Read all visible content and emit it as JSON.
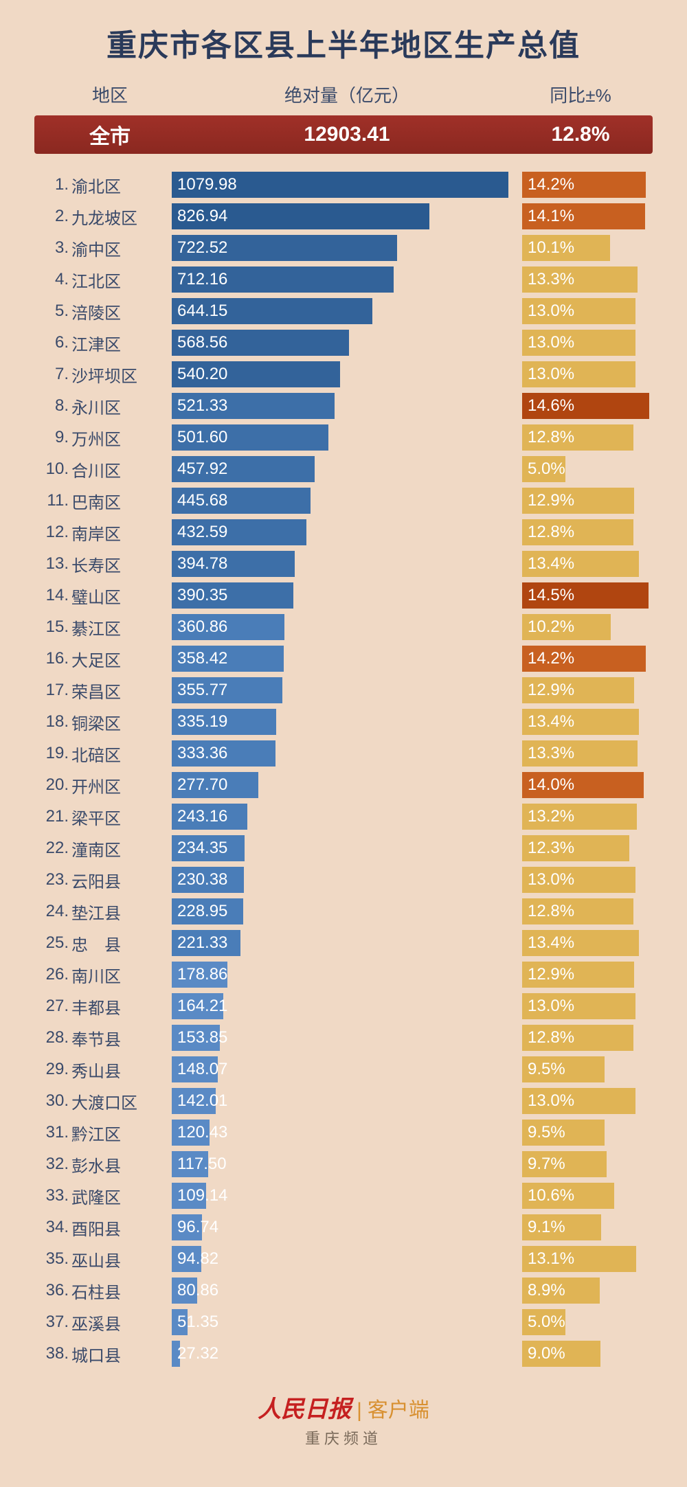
{
  "title": "重庆市各区县上半年地区生产总值",
  "headers": {
    "region": "地区",
    "value": "绝对量（亿元）",
    "growth": "同比±%"
  },
  "total": {
    "region": "全市",
    "value": "12903.41",
    "growth": "12.8%"
  },
  "chart": {
    "type": "bar",
    "background_color": "#f0d9c5",
    "bar_max_value": 1080,
    "growth_max_value": 15.0,
    "bar_color_scale": [
      "#2a5a90",
      "#3a6aa0",
      "#4a7ab0",
      "#5a8ac0",
      "#6a9ad0"
    ],
    "growth_color_tiers": [
      {
        "min": 14.5,
        "color": "#b04510"
      },
      {
        "min": 14.0,
        "color": "#c86020"
      },
      {
        "min": 13.5,
        "color": "#d8a040"
      },
      {
        "min": 0,
        "color": "#e0b455"
      }
    ]
  },
  "rows": [
    {
      "rank": 1,
      "name": "渝北区",
      "value": 1079.98,
      "growth": 14.2
    },
    {
      "rank": 2,
      "name": "九龙坡区",
      "value": 826.94,
      "growth": 14.1
    },
    {
      "rank": 3,
      "name": "渝中区",
      "value": 722.52,
      "growth": 10.1
    },
    {
      "rank": 4,
      "name": "江北区",
      "value": 712.16,
      "growth": 13.3
    },
    {
      "rank": 5,
      "name": "涪陵区",
      "value": 644.15,
      "growth": 13.0
    },
    {
      "rank": 6,
      "name": "江津区",
      "value": 568.56,
      "growth": 13.0
    },
    {
      "rank": 7,
      "name": "沙坪坝区",
      "value": 540.2,
      "growth": 13.0
    },
    {
      "rank": 8,
      "name": "永川区",
      "value": 521.33,
      "growth": 14.6
    },
    {
      "rank": 9,
      "name": "万州区",
      "value": 501.6,
      "growth": 12.8
    },
    {
      "rank": 10,
      "name": "合川区",
      "value": 457.92,
      "growth": 5.0
    },
    {
      "rank": 11,
      "name": "巴南区",
      "value": 445.68,
      "growth": 12.9
    },
    {
      "rank": 12,
      "name": "南岸区",
      "value": 432.59,
      "growth": 12.8
    },
    {
      "rank": 13,
      "name": "长寿区",
      "value": 394.78,
      "growth": 13.4
    },
    {
      "rank": 14,
      "name": "璧山区",
      "value": 390.35,
      "growth": 14.5
    },
    {
      "rank": 15,
      "name": "綦江区",
      "value": 360.86,
      "growth": 10.2
    },
    {
      "rank": 16,
      "name": "大足区",
      "value": 358.42,
      "growth": 14.2
    },
    {
      "rank": 17,
      "name": "荣昌区",
      "value": 355.77,
      "growth": 12.9
    },
    {
      "rank": 18,
      "name": "铜梁区",
      "value": 335.19,
      "growth": 13.4
    },
    {
      "rank": 19,
      "name": "北碚区",
      "value": 333.36,
      "growth": 13.3
    },
    {
      "rank": 20,
      "name": "开州区",
      "value": 277.7,
      "growth": 14.0
    },
    {
      "rank": 21,
      "name": "梁平区",
      "value": 243.16,
      "growth": 13.2
    },
    {
      "rank": 22,
      "name": "潼南区",
      "value": 234.35,
      "growth": 12.3
    },
    {
      "rank": 23,
      "name": "云阳县",
      "value": 230.38,
      "growth": 13.0
    },
    {
      "rank": 24,
      "name": "垫江县",
      "value": 228.95,
      "growth": 12.8
    },
    {
      "rank": 25,
      "name": "忠　县",
      "value": 221.33,
      "growth": 13.4
    },
    {
      "rank": 26,
      "name": "南川区",
      "value": 178.86,
      "growth": 12.9
    },
    {
      "rank": 27,
      "name": "丰都县",
      "value": 164.21,
      "growth": 13.0
    },
    {
      "rank": 28,
      "name": "奉节县",
      "value": 153.85,
      "growth": 12.8
    },
    {
      "rank": 29,
      "name": "秀山县",
      "value": 148.07,
      "growth": 9.5
    },
    {
      "rank": 30,
      "name": "大渡口区",
      "value": 142.01,
      "growth": 13.0
    },
    {
      "rank": 31,
      "name": "黔江区",
      "value": 120.43,
      "growth": 9.5
    },
    {
      "rank": 32,
      "name": "彭水县",
      "value": 117.5,
      "growth": 9.7
    },
    {
      "rank": 33,
      "name": "武隆区",
      "value": 109.14,
      "growth": 10.6
    },
    {
      "rank": 34,
      "name": "酉阳县",
      "value": 96.74,
      "growth": 9.1
    },
    {
      "rank": 35,
      "name": "巫山县",
      "value": 94.82,
      "growth": 13.1
    },
    {
      "rank": 36,
      "name": "石柱县",
      "value": 80.86,
      "growth": 8.9
    },
    {
      "rank": 37,
      "name": "巫溪县",
      "value": 51.35,
      "growth": 5.0
    },
    {
      "rank": 38,
      "name": "城口县",
      "value": 27.32,
      "growth": 9.0
    }
  ],
  "footer": {
    "brand": "人民日报",
    "client": "客户端",
    "sub": "重庆频道"
  }
}
